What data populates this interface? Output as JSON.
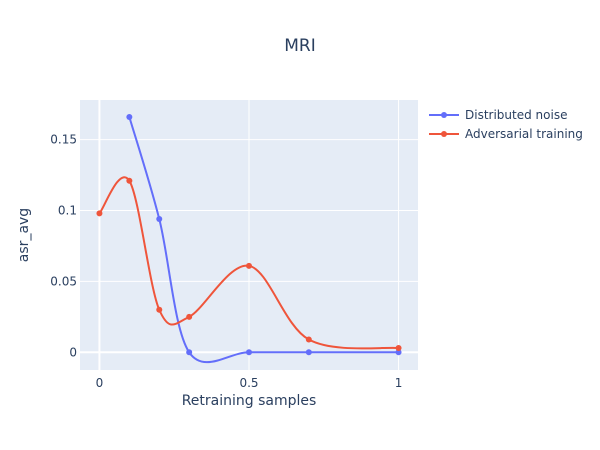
{
  "chart_data": {
    "type": "line",
    "title": "MRI",
    "xlabel": "Retraining samples",
    "ylabel": "asr_avg",
    "xlim": [
      -0.065,
      1.065
    ],
    "ylim": [
      -0.0125,
      0.178
    ],
    "x_ticks": [
      0,
      0.5,
      1
    ],
    "x_tick_labels": [
      "0",
      "0.5",
      "1"
    ],
    "y_ticks": [
      0,
      0.05,
      0.1,
      0.15
    ],
    "y_tick_labels": [
      "0",
      "0.05",
      "0.1",
      "0.15"
    ],
    "grid": true,
    "legend_position": "top-right",
    "background_color": "#e5ecf6",
    "series": [
      {
        "name": "Distributed noise",
        "color": "#636efa",
        "x": [
          0.1,
          0.2,
          0.3,
          0.5,
          0.7,
          1.0
        ],
        "y": [
          0.166,
          0.094,
          0.0,
          0.0,
          0.0,
          0.0
        ]
      },
      {
        "name": "Adversarial training",
        "color": "#ef553b",
        "x": [
          0,
          0.1,
          0.2,
          0.3,
          0.5,
          0.7,
          1.0
        ],
        "y": [
          0.098,
          0.121,
          0.03,
          0.025,
          0.061,
          0.009,
          0.003
        ]
      }
    ]
  }
}
